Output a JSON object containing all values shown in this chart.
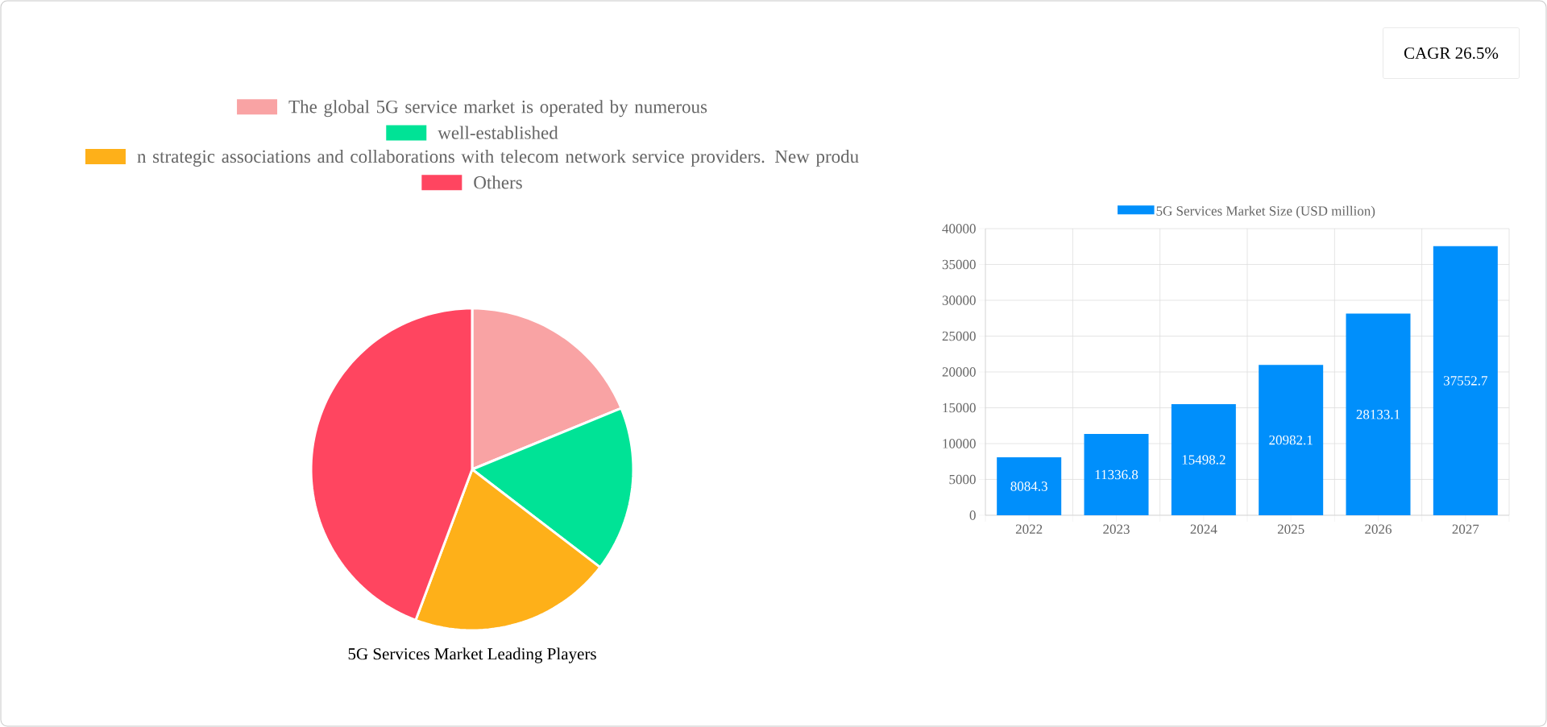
{
  "chart_data": [
    {
      "type": "pie",
      "title": "5G Services Market Leading Players",
      "legend": "top",
      "categories": [
        "The global 5G service market is operated by numerous",
        "well-established",
        "n strategic associations and collaborations with telecom network service providers. New produ",
        "Others"
      ],
      "values": [
        18.8,
        16.6,
        20.3,
        44.3
      ],
      "colors": [
        "#f9a3a4",
        "#00e396",
        "#feb019",
        "#ff4560"
      ]
    },
    {
      "type": "bar",
      "categories": [
        "2022",
        "2023",
        "2024",
        "2025",
        "2026",
        "2027"
      ],
      "series": [
        {
          "name": "5G Services Market Size (USD million)",
          "color": "#008ffb",
          "values": [
            8084.3,
            11336.8,
            15498.2,
            20982.1,
            28133.1,
            37552.7
          ]
        }
      ],
      "ylim": [
        0,
        40000
      ],
      "yticks": [
        0,
        5000,
        10000,
        15000,
        20000,
        25000,
        30000,
        35000,
        40000
      ],
      "grid": true,
      "legend": "top",
      "data_labels": true
    },
    {
      "type": "other",
      "title": "CAGR 26.5%"
    }
  ]
}
